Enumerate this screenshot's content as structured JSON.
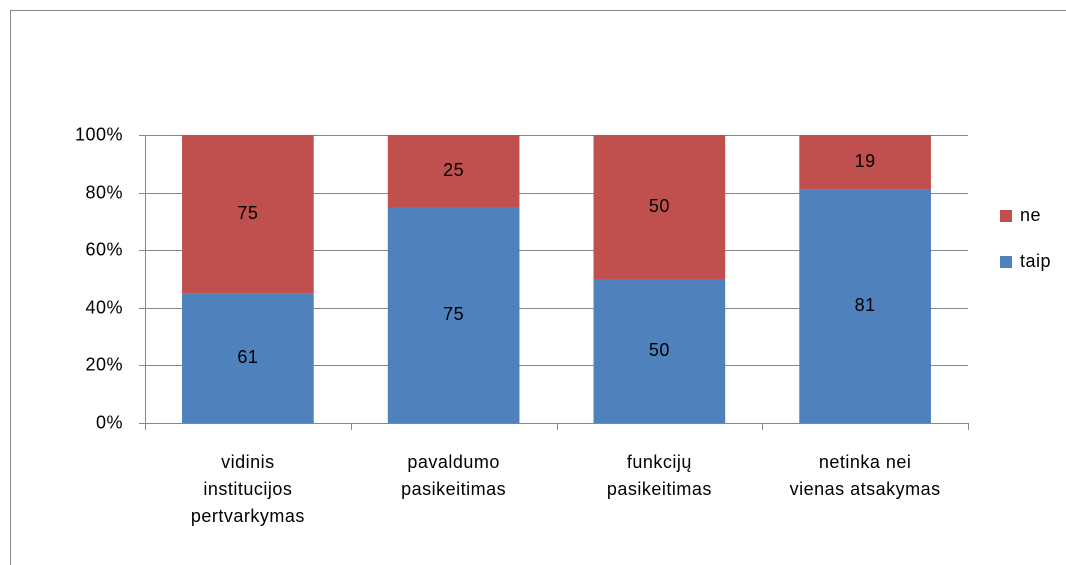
{
  "chart_data": {
    "type": "bar",
    "stacking": "percent",
    "categories": [
      [
        "vidinis",
        "institucijos",
        "pertvarkymas"
      ],
      [
        "pavaldumo",
        "pasikeitimas"
      ],
      [
        "funkcijų",
        "pasikeitimas"
      ],
      [
        "netinka nei",
        "vienas atsakymas"
      ]
    ],
    "series": [
      {
        "name": "taip",
        "color": "#4f81bd",
        "values": [
          61,
          75,
          50,
          81
        ]
      },
      {
        "name": "ne",
        "color": "#c0504d",
        "values": [
          75,
          25,
          50,
          19
        ]
      }
    ],
    "ylim": [
      0,
      100
    ],
    "yticks": [
      {
        "value": 0,
        "label": "0%"
      },
      {
        "value": 20,
        "label": "20%"
      },
      {
        "value": 40,
        "label": "40%"
      },
      {
        "value": 60,
        "label": "60%"
      },
      {
        "value": 80,
        "label": "80%"
      },
      {
        "value": 100,
        "label": "100%"
      }
    ],
    "grid": true,
    "legend": "right"
  }
}
